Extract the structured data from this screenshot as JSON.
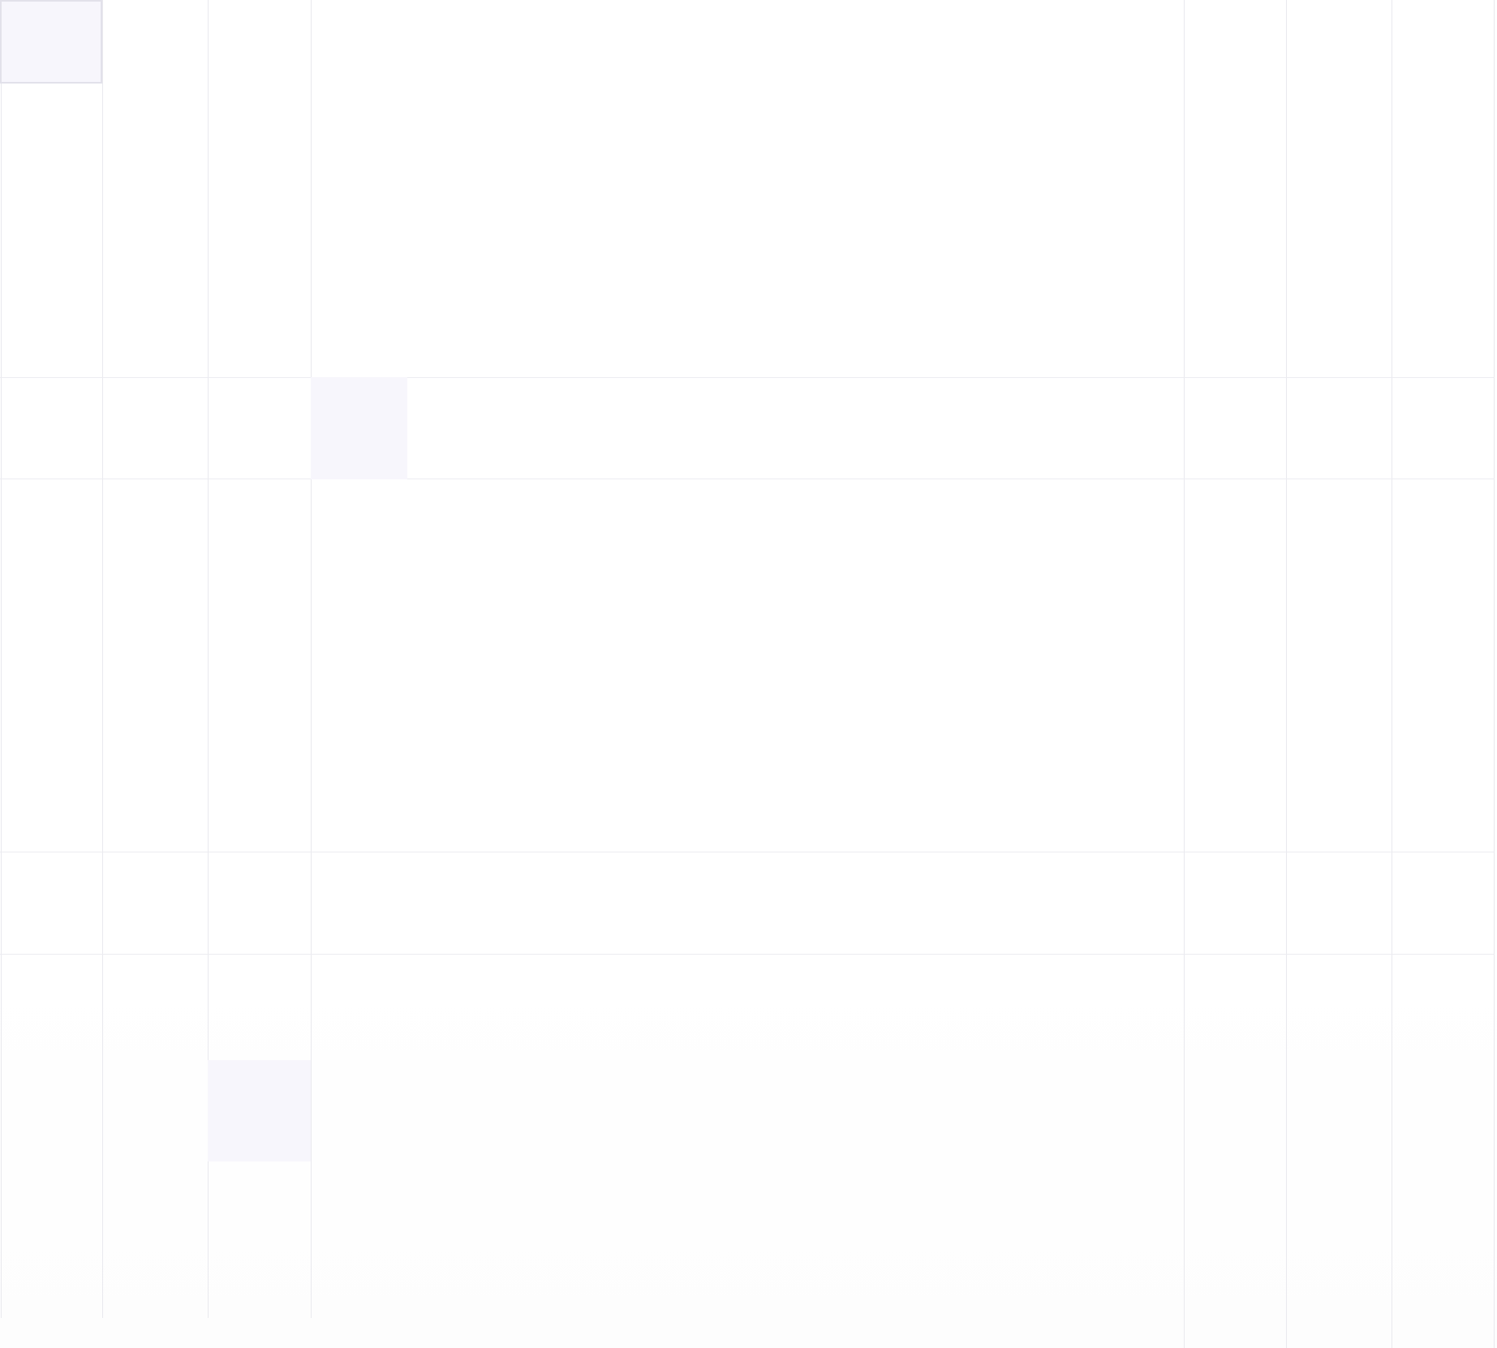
{
  "grid": {
    "line_color": "#e9e9ee",
    "highlight_color": "#f7f6fc",
    "highlight_border_color": "#e2e1ea"
  }
}
